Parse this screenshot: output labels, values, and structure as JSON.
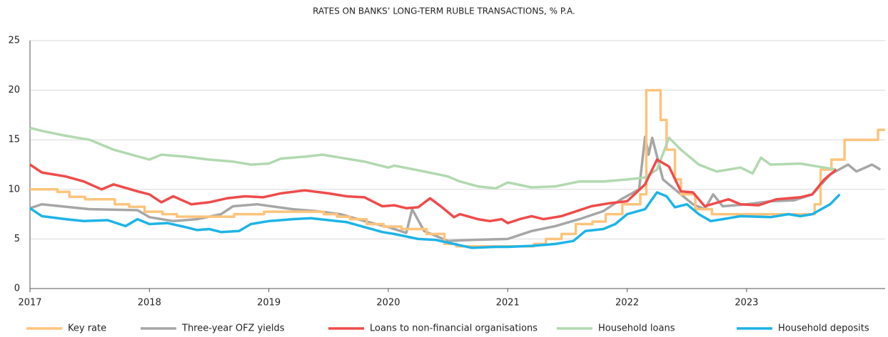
{
  "chart_data": {
    "type": "line",
    "title": "RATES ON BANKS’ LONG-TERM RUBLE TRANSACTIONS, % P.A.",
    "xlim": [
      2017,
      2024.16
    ],
    "xticks": [
      2017,
      2018,
      2019,
      2020,
      2021,
      2022,
      2023
    ],
    "ylim": [
      0,
      25
    ],
    "yticks": [
      0,
      5,
      10,
      15,
      20,
      25
    ],
    "grid": true,
    "legend": "bottom",
    "series": [
      {
        "name": "Key rate",
        "color": "#fdc47c",
        "x": [
          2017.0,
          2017.23,
          2017.23,
          2017.33,
          2017.33,
          2017.46,
          2017.46,
          2017.71,
          2017.71,
          2017.83,
          2017.83,
          2017.96,
          2017.96,
          2018.11,
          2018.11,
          2018.23,
          2018.23,
          2018.71,
          2018.71,
          2018.96,
          2018.96,
          2019.46,
          2019.46,
          2019.57,
          2019.57,
          2019.68,
          2019.68,
          2019.82,
          2019.82,
          2019.96,
          2019.96,
          2020.11,
          2020.11,
          2020.32,
          2020.32,
          2020.47,
          2020.47,
          2020.57,
          2020.57,
          2021.22,
          2021.22,
          2021.32,
          2021.32,
          2021.45,
          2021.45,
          2021.57,
          2021.57,
          2021.71,
          2021.71,
          2021.82,
          2021.82,
          2021.96,
          2021.96,
          2022.11,
          2022.11,
          2022.16,
          2022.16,
          2022.28,
          2022.28,
          2022.33,
          2022.33,
          2022.4,
          2022.4,
          2022.45,
          2022.45,
          2022.57,
          2022.57,
          2022.71,
          2022.71,
          2023.57,
          2023.57,
          2023.62,
          2023.62,
          2023.71,
          2023.71,
          2023.82,
          2023.82,
          2024.1,
          2024.1,
          2024.16
        ],
        "values": [
          10,
          10,
          9.75,
          9.75,
          9.25,
          9.25,
          9,
          9,
          8.5,
          8.5,
          8.25,
          8.25,
          7.75,
          7.75,
          7.5,
          7.5,
          7.25,
          7.25,
          7.5,
          7.5,
          7.75,
          7.75,
          7.5,
          7.5,
          7.25,
          7.25,
          7,
          7,
          6.5,
          6.5,
          6.25,
          6.25,
          6,
          6,
          5.5,
          5.5,
          4.5,
          4.5,
          4.25,
          4.25,
          4.5,
          4.5,
          5,
          5,
          5.5,
          5.5,
          6.5,
          6.5,
          6.75,
          6.75,
          7.5,
          7.5,
          8.5,
          8.5,
          9.5,
          9.5,
          20,
          20,
          17,
          17,
          14,
          14,
          11,
          11,
          9.5,
          9.5,
          8,
          8,
          7.5,
          7.5,
          8.5,
          8.5,
          12,
          12,
          13,
          13,
          15,
          15,
          16,
          16
        ]
      },
      {
        "name": "Three-year OFZ yields",
        "color": "#a6a6a6",
        "x": [
          2017.0,
          2017.1,
          2017.5,
          2017.9,
          2018.0,
          2018.2,
          2018.4,
          2018.6,
          2018.7,
          2018.9,
          2019.2,
          2019.4,
          2019.6,
          2019.8,
          2020.0,
          2020.15,
          2020.2,
          2020.3,
          2020.5,
          2020.7,
          2021.0,
          2021.2,
          2021.4,
          2021.6,
          2021.8,
          2021.95,
          2022.1,
          2022.15,
          2022.18,
          2022.21,
          2022.3,
          2022.45,
          2022.55,
          2022.65,
          2022.72,
          2022.8,
          2023.0,
          2023.2,
          2023.4,
          2023.55,
          2023.7,
          2023.85,
          2023.92,
          2024.05,
          2024.12
        ],
        "values": [
          8.1,
          8.5,
          8.0,
          7.9,
          7.2,
          6.8,
          7.0,
          7.5,
          8.3,
          8.5,
          8.0,
          7.8,
          7.5,
          6.8,
          6.2,
          5.6,
          8.0,
          5.8,
          4.8,
          4.9,
          5.0,
          5.8,
          6.3,
          7.0,
          7.8,
          9.0,
          10.0,
          15.3,
          13.5,
          15.2,
          11.0,
          9.5,
          8.5,
          8.0,
          9.5,
          8.3,
          8.5,
          8.8,
          8.9,
          9.5,
          11.5,
          12.5,
          11.8,
          12.5,
          12.0
        ]
      },
      {
        "name": "Loans to non-financial organisations",
        "color": "#ef4b4b",
        "x": [
          2017.0,
          2017.1,
          2017.3,
          2017.45,
          2017.6,
          2017.7,
          2017.9,
          2018.0,
          2018.1,
          2018.2,
          2018.35,
          2018.5,
          2018.65,
          2018.8,
          2018.95,
          2019.1,
          2019.3,
          2019.5,
          2019.65,
          2019.8,
          2019.95,
          2020.05,
          2020.15,
          2020.25,
          2020.35,
          2020.45,
          2020.55,
          2020.6,
          2020.75,
          2020.85,
          2020.95,
          2021.0,
          2021.1,
          2021.2,
          2021.3,
          2021.45,
          2021.55,
          2021.7,
          2021.85,
          2022.0,
          2022.15,
          2022.25,
          2022.35,
          2022.45,
          2022.55,
          2022.65,
          2022.85,
          2022.95,
          2023.1,
          2023.25,
          2023.45,
          2023.55,
          2023.65,
          2023.75
        ],
        "values": [
          12.5,
          11.7,
          11.3,
          10.8,
          10.0,
          10.5,
          9.8,
          9.5,
          8.7,
          9.3,
          8.5,
          8.7,
          9.1,
          9.3,
          9.2,
          9.6,
          9.9,
          9.6,
          9.3,
          9.2,
          8.3,
          8.4,
          8.1,
          8.2,
          9.1,
          8.2,
          7.2,
          7.5,
          7.0,
          6.8,
          7.0,
          6.6,
          7.0,
          7.3,
          7.0,
          7.3,
          7.7,
          8.3,
          8.6,
          8.8,
          10.5,
          13.0,
          12.3,
          9.8,
          9.7,
          8.3,
          9.0,
          8.5,
          8.4,
          9.0,
          9.2,
          9.5,
          11.0,
          12.0
        ]
      },
      {
        "name": "Household loans",
        "color": "#b2d9b0",
        "x": [
          2017.0,
          2017.1,
          2017.3,
          2017.5,
          2017.7,
          2017.85,
          2018.0,
          2018.1,
          2018.3,
          2018.5,
          2018.7,
          2018.85,
          2019.0,
          2019.1,
          2019.3,
          2019.45,
          2019.6,
          2019.8,
          2020.0,
          2020.05,
          2020.3,
          2020.5,
          2020.6,
          2020.75,
          2020.9,
          2021.0,
          2021.2,
          2021.4,
          2021.6,
          2021.8,
          2022.0,
          2022.15,
          2022.25,
          2022.35,
          2022.45,
          2022.6,
          2022.75,
          2022.95,
          2023.05,
          2023.12,
          2023.2,
          2023.45,
          2023.65,
          2023.75
        ],
        "values": [
          16.2,
          15.9,
          15.4,
          15.0,
          14.0,
          13.5,
          13.0,
          13.5,
          13.3,
          13.0,
          12.8,
          12.5,
          12.6,
          13.1,
          13.3,
          13.5,
          13.2,
          12.8,
          12.2,
          12.4,
          11.8,
          11.3,
          10.8,
          10.3,
          10.1,
          10.7,
          10.2,
          10.3,
          10.8,
          10.8,
          11.0,
          11.2,
          12.0,
          15.2,
          14.0,
          12.5,
          11.8,
          12.2,
          11.6,
          13.2,
          12.5,
          12.6,
          12.2,
          12.0
        ]
      },
      {
        "name": "Household deposits",
        "color": "#1db4e6",
        "x": [
          2017.0,
          2017.1,
          2017.3,
          2017.45,
          2017.65,
          2017.8,
          2017.9,
          2018.0,
          2018.15,
          2018.3,
          2018.4,
          2018.5,
          2018.6,
          2018.75,
          2018.85,
          2019.0,
          2019.2,
          2019.35,
          2019.5,
          2019.65,
          2019.8,
          2019.95,
          2020.05,
          2020.25,
          2020.4,
          2020.55,
          2020.7,
          2020.9,
          2021.0,
          2021.2,
          2021.4,
          2021.55,
          2021.65,
          2021.8,
          2021.9,
          2022.0,
          2022.15,
          2022.25,
          2022.33,
          2022.4,
          2022.5,
          2022.6,
          2022.7,
          2022.8,
          2022.95,
          2023.2,
          2023.35,
          2023.45,
          2023.55,
          2023.7,
          2023.78
        ],
        "values": [
          8.1,
          7.3,
          7.0,
          6.8,
          6.9,
          6.3,
          7.0,
          6.5,
          6.6,
          6.2,
          5.9,
          6.0,
          5.7,
          5.8,
          6.5,
          6.8,
          7.0,
          7.1,
          6.9,
          6.7,
          6.2,
          5.7,
          5.5,
          5.0,
          4.9,
          4.5,
          4.1,
          4.2,
          4.2,
          4.3,
          4.5,
          4.8,
          5.8,
          6.0,
          6.5,
          7.5,
          8.0,
          9.7,
          9.3,
          8.2,
          8.5,
          7.5,
          6.8,
          7.0,
          7.3,
          7.2,
          7.5,
          7.3,
          7.5,
          8.5,
          9.5
        ]
      }
    ]
  }
}
